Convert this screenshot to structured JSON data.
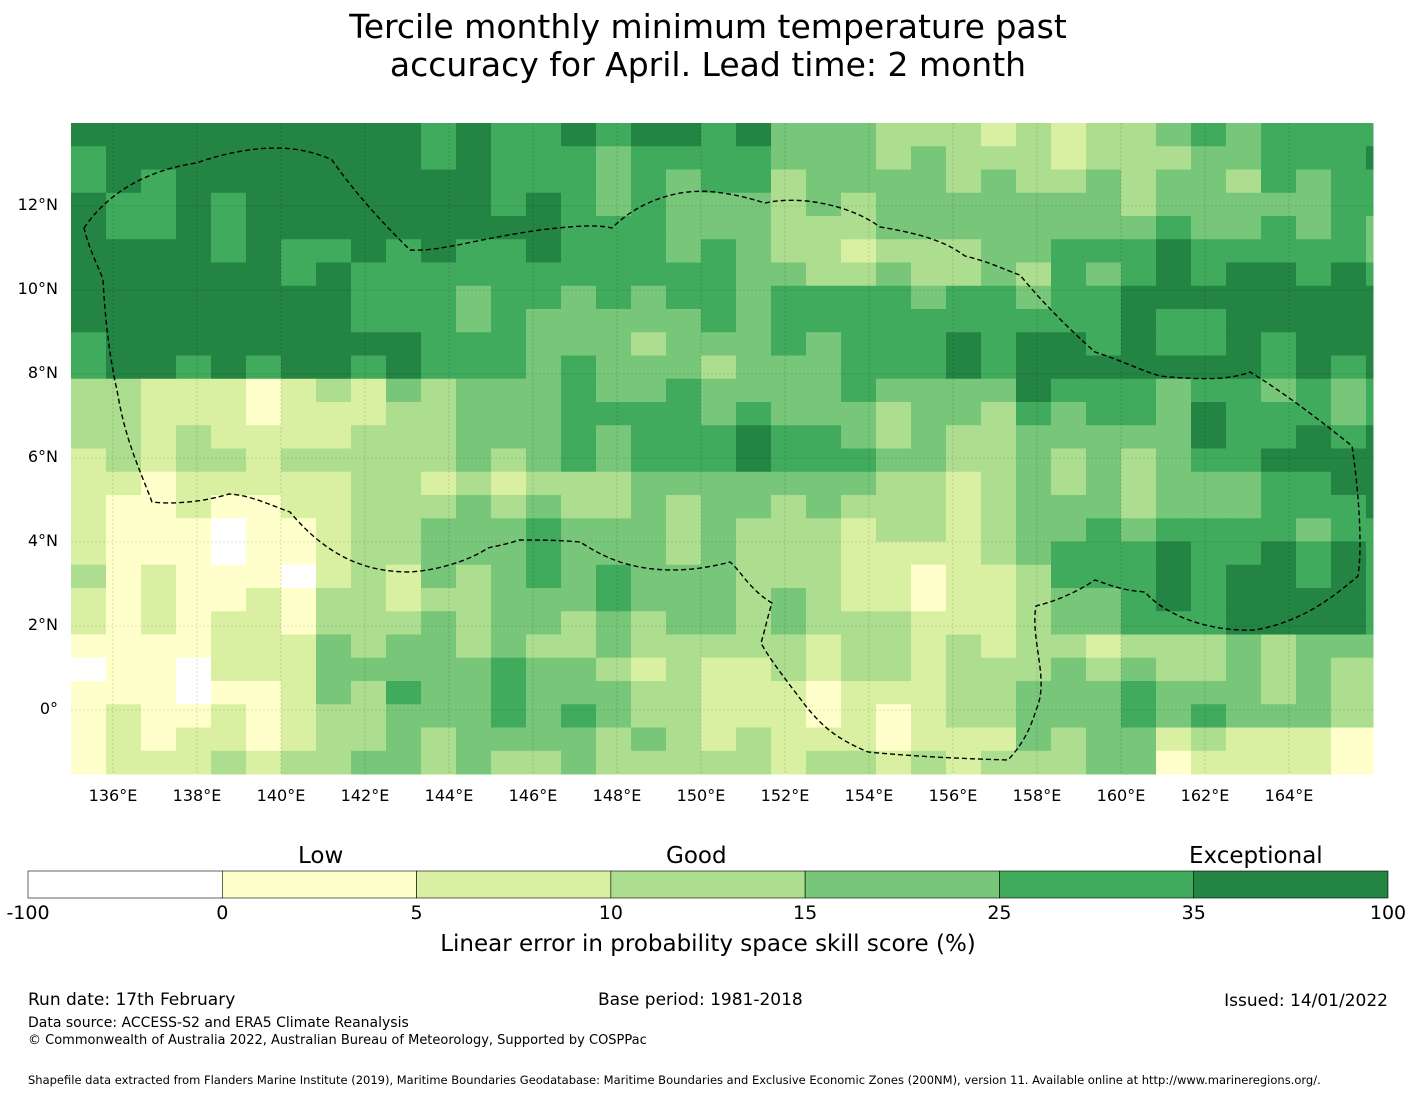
{
  "title": {
    "line1": "Tercile monthly minimum temperature past",
    "line2": "accuracy for April. Lead time: 2 month"
  },
  "map": {
    "x_ticks": [
      "136°E",
      "138°E",
      "140°E",
      "142°E",
      "144°E",
      "146°E",
      "148°E",
      "150°E",
      "152°E",
      "154°E",
      "156°E",
      "158°E",
      "160°E",
      "162°E",
      "164°E"
    ],
    "y_ticks": [
      "12°N",
      "10°N",
      "8°N",
      "6°N",
      "4°N",
      "2°N",
      "0°"
    ],
    "lon_range": [
      135,
      166
    ],
    "lat_range": [
      -1.5,
      14
    ]
  },
  "colorbar": {
    "categories": [
      "Low",
      "Good",
      "Exceptional"
    ],
    "bounds": [
      "-100",
      "0",
      "5",
      "10",
      "15",
      "25",
      "35",
      "100"
    ],
    "colors": [
      "#ffffff",
      "#ffffcc",
      "#d9f0a3",
      "#addd8e",
      "#78c679",
      "#41ab5d",
      "#238443"
    ],
    "label": "Linear error in probability space skill score (%)"
  },
  "footer": {
    "run_date": "Run date: 17th February",
    "base_period": "Base period: 1981-2018",
    "issued": "Issued: 14/01/2022",
    "data_source": "Data source: ACCESS-S2 and ERA5 Climate Reanalysis",
    "copyright": "© Commonwealth of Australia 2022, Australian Bureau of Meteorology, Supported by COSPPac",
    "shapefile": "Shapefile data extracted from Flanders Marine Institute (2019), Maritime Boundaries Geodatabase: Maritime Boundaries and Exclusive Economic Zones (200NM), version 11. Available online at http://www.marineregions.org/."
  }
}
